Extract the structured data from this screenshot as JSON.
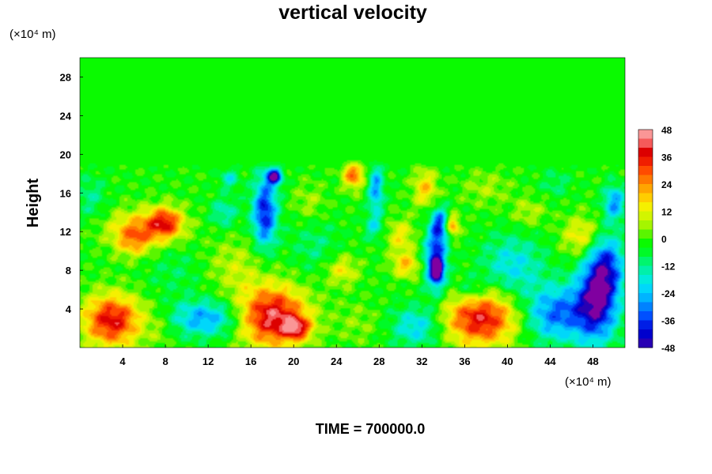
{
  "chart_data": {
    "type": "heatmap",
    "title": "vertical velocity",
    "xlabel": "",
    "ylabel": "Height",
    "x_unit": "(×10⁴ m)",
    "y_unit": "(×10⁴ m)",
    "xlim": [
      0,
      51
    ],
    "ylim": [
      0,
      30
    ],
    "x_ticks": [
      4,
      8,
      12,
      16,
      20,
      24,
      28,
      32,
      36,
      40,
      44,
      48
    ],
    "y_ticks": [
      4,
      8,
      12,
      16,
      20,
      24,
      28
    ],
    "colorbar": {
      "range": [
        -48,
        48
      ],
      "step": 4,
      "tick_labels": [
        48,
        36,
        24,
        12,
        0,
        -12,
        -24,
        -36,
        -48
      ]
    },
    "features": [
      {
        "x": 3.0,
        "y": 2.8,
        "sx": 1.9,
        "sy": 1.9,
        "value": 40
      },
      {
        "x": 18.0,
        "y": 3.2,
        "sx": 2.3,
        "sy": 2.2,
        "value": 44
      },
      {
        "x": 20.3,
        "y": 2.0,
        "sx": 0.9,
        "sy": 0.8,
        "value": 28
      },
      {
        "x": 37.5,
        "y": 3.0,
        "sx": 2.4,
        "sy": 2.0,
        "value": 40
      },
      {
        "x": 11.8,
        "y": 3.0,
        "sx": 2.3,
        "sy": 1.3,
        "value": -26
      },
      {
        "x": 31.5,
        "y": 2.2,
        "sx": 1.6,
        "sy": 1.5,
        "value": -20
      },
      {
        "x": 44.5,
        "y": 3.5,
        "sx": 2.0,
        "sy": 2.0,
        "value": -30
      },
      {
        "x": 48.3,
        "y": 4.5,
        "sx": 1.4,
        "sy": 2.8,
        "value": -42
      },
      {
        "x": 49.2,
        "y": 8.5,
        "sx": 1.2,
        "sy": 2.3,
        "value": -32
      },
      {
        "x": 6.0,
        "y": 12.4,
        "sx": 2.5,
        "sy": 1.4,
        "value": 20
      },
      {
        "x": 8.0,
        "y": 13.0,
        "sx": 1.1,
        "sy": 1.1,
        "value": 28
      },
      {
        "x": 5.0,
        "y": 11.0,
        "sx": 1.2,
        "sy": 1.2,
        "value": 18
      },
      {
        "x": 17.3,
        "y": 14.0,
        "sx": 0.8,
        "sy": 2.6,
        "value": -38
      },
      {
        "x": 18.2,
        "y": 17.7,
        "sx": 0.5,
        "sy": 0.6,
        "value": -44
      },
      {
        "x": 25.6,
        "y": 17.9,
        "sx": 0.7,
        "sy": 1.0,
        "value": 30
      },
      {
        "x": 27.7,
        "y": 16.5,
        "sx": 0.5,
        "sy": 1.8,
        "value": -26
      },
      {
        "x": 33.3,
        "y": 9.0,
        "sx": 0.7,
        "sy": 2.2,
        "value": -40
      },
      {
        "x": 33.7,
        "y": 12.8,
        "sx": 0.6,
        "sy": 1.2,
        "value": -30
      },
      {
        "x": 33.4,
        "y": 8.0,
        "sx": 0.35,
        "sy": 0.7,
        "value": -44
      },
      {
        "x": 34.8,
        "y": 12.6,
        "sx": 0.5,
        "sy": 0.8,
        "value": 28
      },
      {
        "x": 32.3,
        "y": 16.5,
        "sx": 0.8,
        "sy": 1.4,
        "value": 20
      },
      {
        "x": 30.0,
        "y": 11.5,
        "sx": 0.9,
        "sy": 1.3,
        "value": 16
      },
      {
        "x": 27.5,
        "y": 12.5,
        "sx": 0.6,
        "sy": 1.0,
        "value": -14
      },
      {
        "x": 24.5,
        "y": 8.0,
        "sx": 1.1,
        "sy": 1.1,
        "value": 16
      },
      {
        "x": 30.5,
        "y": 8.5,
        "sx": 0.9,
        "sy": 0.9,
        "value": 20
      },
      {
        "x": 40.5,
        "y": 8.5,
        "sx": 2.0,
        "sy": 2.2,
        "value": -18
      },
      {
        "x": 47.0,
        "y": 11.5,
        "sx": 1.3,
        "sy": 1.5,
        "value": 18
      },
      {
        "x": 50.0,
        "y": 15.0,
        "sx": 0.7,
        "sy": 1.3,
        "value": -26
      },
      {
        "x": 13.5,
        "y": 14.0,
        "sx": 0.9,
        "sy": 1.1,
        "value": -14
      },
      {
        "x": 14.5,
        "y": 8.5,
        "sx": 2.0,
        "sy": 2.0,
        "value": 10
      },
      {
        "x": 9.0,
        "y": 8.0,
        "sx": 2.0,
        "sy": 2.0,
        "value": -6
      },
      {
        "x": 22.0,
        "y": 10.5,
        "sx": 1.6,
        "sy": 2.0,
        "value": -8
      },
      {
        "x": 38.0,
        "y": 16.5,
        "sx": 1.6,
        "sy": 1.3,
        "value": 8
      },
      {
        "x": 42.0,
        "y": 14.0,
        "sx": 1.1,
        "sy": 1.1,
        "value": 10
      },
      {
        "x": 1.0,
        "y": 15.5,
        "sx": 1.0,
        "sy": 1.6,
        "value": -10
      },
      {
        "x": 21.5,
        "y": 15.0,
        "sx": 1.1,
        "sy": 1.4,
        "value": 8
      },
      {
        "x": 44.5,
        "y": 17.0,
        "sx": 1.0,
        "sy": 1.0,
        "value": -8
      },
      {
        "x": 14.0,
        "y": 17.5,
        "sx": 0.6,
        "sy": 0.7,
        "value": -16
      },
      {
        "x": 36.5,
        "y": 6.0,
        "sx": 1.0,
        "sy": 1.0,
        "value": -12
      },
      {
        "x": 26.0,
        "y": 2.5,
        "sx": 1.5,
        "sy": 1.5,
        "value": 6
      },
      {
        "x": 7.5,
        "y": 2.0,
        "sx": 1.0,
        "sy": 1.5,
        "value": 6
      }
    ]
  },
  "footer": {
    "time_label": "TIME = 700000.0"
  }
}
